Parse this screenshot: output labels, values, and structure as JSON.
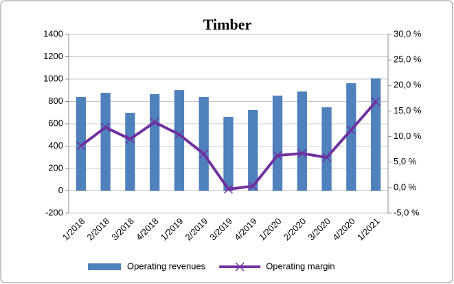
{
  "chart_data": {
    "type": "bar-line",
    "title": "Timber",
    "categories": [
      "1/2018",
      "2/2018",
      "3/2018",
      "4/2018",
      "1/2019",
      "2/2019",
      "3/2019",
      "4/2019",
      "1/2020",
      "2/2020",
      "3/2020",
      "4/2020",
      "1/2021"
    ],
    "series": [
      {
        "name": "Operating revenues",
        "color": "#4f81bd",
        "type": "bar",
        "values": [
          840,
          877,
          698,
          865,
          901,
          840,
          662,
          723,
          852,
          889,
          748,
          963,
          1006
        ]
      },
      {
        "name": "Operating margin",
        "color": "#7030a0",
        "type": "line",
        "axis": "y2",
        "values": [
          8.2,
          11.8,
          9.5,
          12.8,
          10.4,
          6.6,
          -0.3,
          0.3,
          6.3,
          6.7,
          5.9,
          11.3,
          16.8
        ]
      }
    ],
    "ylim": [
      -200,
      1400
    ],
    "yticks": [
      -200,
      0,
      200,
      400,
      600,
      800,
      1000,
      1200,
      1400
    ],
    "y2lim": [
      -5,
      30
    ],
    "y2ticks": [
      {
        "value": -5,
        "label": "-5,0 %"
      },
      {
        "value": 0,
        "label": "0,0 %"
      },
      {
        "value": 5,
        "label": "5,0 %"
      },
      {
        "value": 10,
        "label": "10,0 %"
      },
      {
        "value": 15,
        "label": "15,0 %"
      },
      {
        "value": 20,
        "label": "20,0 %"
      },
      {
        "value": 25,
        "label": "25,0 %"
      },
      {
        "value": 30,
        "label": "30,0 %"
      }
    ],
    "grid": true,
    "legend": "bottom"
  }
}
